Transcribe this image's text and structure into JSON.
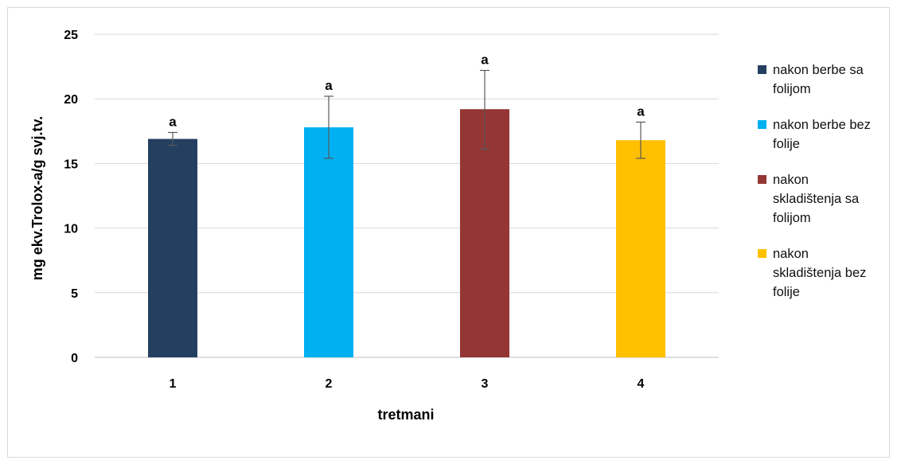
{
  "chart_data": {
    "type": "bar",
    "categories": [
      "1",
      "2",
      "3",
      "4"
    ],
    "values": [
      16.9,
      17.8,
      19.2,
      16.8
    ],
    "error_low": [
      16.4,
      15.4,
      16.1,
      15.4
    ],
    "error_high": [
      17.4,
      20.2,
      22.2,
      18.2
    ],
    "significance_labels": [
      "a",
      "a",
      "a",
      "a"
    ],
    "colors": [
      "#243f60",
      "#00b0f0",
      "#943634",
      "#ffc000"
    ],
    "legend": [
      "nakon berbe sa folijom",
      "nakon berbe bez folije",
      "nakon skladištenja sa folijom",
      "nakon skladištenja bez folije"
    ],
    "legend_position": "right",
    "title": "",
    "xlabel": "tretmani",
    "ylabel": "mg ekv.Trolox-a/g svj.tv.",
    "ylim": [
      0,
      25
    ],
    "yticks": [
      "0",
      "5",
      "10",
      "15",
      "20",
      "25"
    ],
    "grid": true
  }
}
